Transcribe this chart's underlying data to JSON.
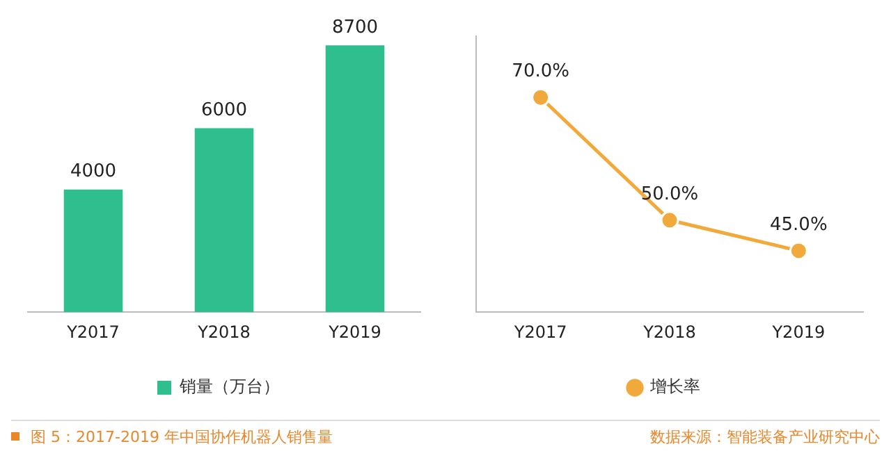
{
  "chart_data": [
    {
      "type": "bar",
      "categories": [
        "Y2017",
        "Y2018",
        "Y2019"
      ],
      "series": [
        {
          "name": "销量（万台）",
          "color": "#2fbf8f",
          "values": [
            4000,
            6000,
            8700
          ]
        }
      ],
      "data_labels": true,
      "legend": "bottom",
      "tick_labels": "x",
      "grid": false,
      "annotations": [
        "图 5：2017-2019 年中国协作机器人销售量"
      ]
    },
    {
      "type": "line",
      "categories": [
        "Y2017",
        "Y2018",
        "Y2019"
      ],
      "series": [
        {
          "name": "增长率",
          "color": "#f2a93b",
          "values": [
            70,
            50,
            45
          ],
          "value_labels": [
            "70.0%",
            "50.0%",
            "45.0%"
          ]
        }
      ],
      "marker": "circle",
      "legend": "bottom",
      "tick_labels": "x",
      "grid": false,
      "annotations": [
        "数据来源：智能装备产业研究中心"
      ]
    }
  ]
}
